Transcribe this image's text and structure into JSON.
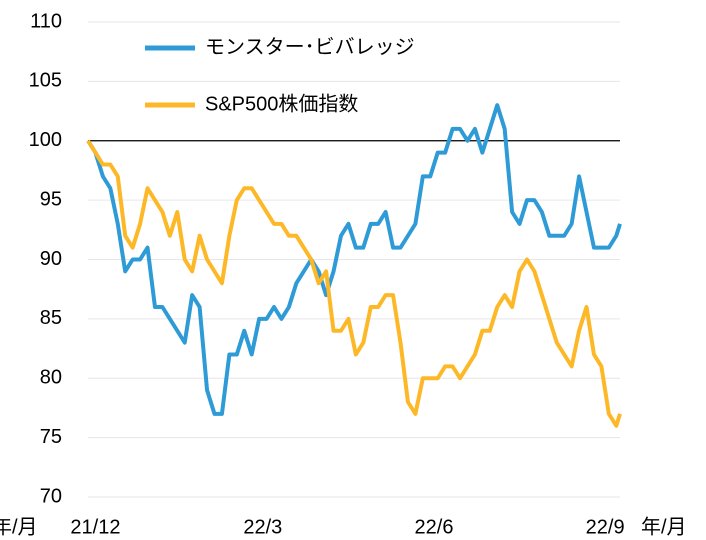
{
  "chart_data": {
    "type": "line",
    "xlabel": "年/月",
    "x": [
      -4,
      0,
      4,
      8,
      12,
      16,
      20,
      24,
      28,
      32,
      36,
      40,
      44,
      48,
      52,
      56,
      60,
      64,
      68,
      72,
      76,
      80,
      84,
      88,
      92,
      96,
      100,
      104,
      108,
      112,
      116,
      120,
      124,
      128,
      132,
      136,
      140,
      144,
      148,
      152,
      156,
      160,
      164,
      168,
      172,
      176,
      180,
      184,
      188,
      192,
      196,
      200,
      204,
      208,
      212,
      216,
      220,
      224,
      228,
      232,
      236,
      240,
      244,
      248,
      252,
      256,
      260,
      264,
      268,
      272,
      276,
      280,
      282
    ],
    "series": [
      {
        "name": "モンスター･ビバレッジ",
        "color": "#2e9bd6",
        "values": [
          100,
          99,
          97,
          96,
          93,
          89,
          90,
          90,
          91,
          86,
          86,
          85,
          84,
          83,
          87,
          86,
          79,
          77,
          77,
          82,
          82,
          84,
          82,
          85,
          85,
          86,
          85,
          86,
          88,
          89,
          90,
          89,
          87,
          89,
          92,
          93,
          91,
          91,
          93,
          93,
          94,
          91,
          91,
          92,
          93,
          97,
          97,
          99,
          99,
          101,
          101,
          100,
          101,
          99,
          101,
          103,
          101,
          94,
          93,
          95,
          95,
          94,
          92,
          92,
          92,
          93,
          97,
          94,
          91,
          91,
          91,
          92,
          93
        ]
      },
      {
        "name": "S&P500株価指数",
        "color": "#fdb827",
        "values": [
          100,
          99,
          98,
          98,
          97,
          92,
          91,
          93,
          96,
          95,
          94,
          92,
          94,
          90,
          89,
          92,
          90,
          89,
          88,
          92,
          95,
          96,
          96,
          95,
          94,
          93,
          93,
          92,
          92,
          91,
          90,
          88,
          89,
          84,
          84,
          85,
          82,
          83,
          86,
          86,
          87,
          87,
          83,
          78,
          77,
          80,
          80,
          80,
          81,
          81,
          80,
          81,
          82,
          84,
          84,
          86,
          87,
          86,
          89,
          90,
          89,
          87,
          85,
          83,
          82,
          81,
          84,
          86,
          82,
          81,
          77,
          76,
          77
        ]
      }
    ],
    "xlim": [
      -4,
      282
    ],
    "xticks": [
      {
        "value": 0,
        "label": "21/12"
      },
      {
        "value": 90,
        "label": "22/3"
      },
      {
        "value": 182,
        "label": "22/6"
      },
      {
        "value": 274,
        "label": "22/9"
      }
    ],
    "ylim": [
      70,
      110
    ],
    "yticks": [
      70,
      75,
      80,
      85,
      90,
      95,
      100,
      105,
      110
    ],
    "grid": true,
    "hline": 100,
    "legend": "upper left"
  }
}
